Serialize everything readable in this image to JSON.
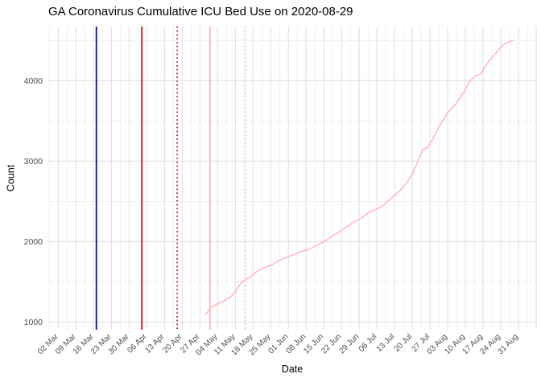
{
  "header": {
    "title": "GA Coronavirus Cumulative ICU Bed Use on 2020-08-29"
  },
  "chart_data": {
    "type": "line",
    "title": "GA Coronavirus Cumulative ICU Bed Use on 2020-08-29",
    "xlabel": "Date",
    "ylabel": "Count",
    "grid": true,
    "legend_position": "none",
    "background": "#ffffff",
    "grid_major_color": "#e3e3e3",
    "grid_minor_color": "#efefef",
    "tick_label_color": "#4d4d4d",
    "x_domain": [
      "2020-02-27",
      "2020-09-07"
    ],
    "ylim": [
      906,
      4672
    ],
    "y_ticks": [
      1000,
      2000,
      3000,
      4000
    ],
    "y_minor_ticks": [
      1500,
      2500,
      3500,
      4500
    ],
    "x_ticks": [
      {
        "date": "2020-03-02",
        "label": "02 Mar"
      },
      {
        "date": "2020-03-09",
        "label": "09 Mar"
      },
      {
        "date": "2020-03-16",
        "label": "16 Mar"
      },
      {
        "date": "2020-03-23",
        "label": "23 Mar"
      },
      {
        "date": "2020-03-30",
        "label": "30 Mar"
      },
      {
        "date": "2020-04-06",
        "label": "06 Apr"
      },
      {
        "date": "2020-04-13",
        "label": "13 Apr"
      },
      {
        "date": "2020-04-20",
        "label": "20 Apr"
      },
      {
        "date": "2020-04-27",
        "label": "27 Apr"
      },
      {
        "date": "2020-05-04",
        "label": "04 May"
      },
      {
        "date": "2020-05-11",
        "label": "11 May"
      },
      {
        "date": "2020-05-18",
        "label": "18 May"
      },
      {
        "date": "2020-05-25",
        "label": "25 May"
      },
      {
        "date": "2020-06-01",
        "label": "01 Jun"
      },
      {
        "date": "2020-06-08",
        "label": "08 Jun"
      },
      {
        "date": "2020-06-15",
        "label": "15 Jun"
      },
      {
        "date": "2020-06-22",
        "label": "22 Jun"
      },
      {
        "date": "2020-06-29",
        "label": "29 Jun"
      },
      {
        "date": "2020-07-06",
        "label": "06 Jul"
      },
      {
        "date": "2020-07-13",
        "label": "13 Jul"
      },
      {
        "date": "2020-07-20",
        "label": "20 Jul"
      },
      {
        "date": "2020-07-27",
        "label": "27 Jul"
      },
      {
        "date": "2020-08-03",
        "label": "03 Aug"
      },
      {
        "date": "2020-08-10",
        "label": "10 Aug"
      },
      {
        "date": "2020-08-17",
        "label": "17 Aug"
      },
      {
        "date": "2020-08-24",
        "label": "24 Aug"
      },
      {
        "date": "2020-08-31",
        "label": "31 Aug"
      }
    ],
    "vlines": [
      {
        "name": "darkblue-solid-event-line",
        "date": "2020-03-17",
        "color": "#00008b",
        "style": "solid"
      },
      {
        "name": "red-solid-event-line",
        "date": "2020-04-04",
        "color": "#e00000",
        "style": "solid"
      },
      {
        "name": "red-dotted-event-line",
        "date": "2020-04-18",
        "color": "#d00000",
        "style": "dotted"
      },
      {
        "name": "pink-solid-event-line",
        "date": "2020-05-01",
        "color": "#ffb6c1",
        "style": "solid"
      },
      {
        "name": "pink-dotted-event-line",
        "date": "2020-05-15",
        "color": "#ffb6c1",
        "style": "dotted"
      }
    ],
    "series": [
      {
        "name": "cumulative-icu-beds",
        "color": "#ffb6c1",
        "points": [
          [
            "2020-04-29",
            1085
          ],
          [
            "2020-05-01",
            1170
          ],
          [
            "2020-05-02",
            1195
          ],
          [
            "2020-05-04",
            1230
          ],
          [
            "2020-05-06",
            1255
          ],
          [
            "2020-05-08",
            1290
          ],
          [
            "2020-05-10",
            1340
          ],
          [
            "2020-05-12",
            1430
          ],
          [
            "2020-05-14",
            1510
          ],
          [
            "2020-05-16",
            1545
          ],
          [
            "2020-05-18",
            1590
          ],
          [
            "2020-05-20",
            1640
          ],
          [
            "2020-05-22",
            1670
          ],
          [
            "2020-05-24",
            1695
          ],
          [
            "2020-05-26",
            1720
          ],
          [
            "2020-05-28",
            1760
          ],
          [
            "2020-05-31",
            1800
          ],
          [
            "2020-06-03",
            1840
          ],
          [
            "2020-06-06",
            1875
          ],
          [
            "2020-06-09",
            1905
          ],
          [
            "2020-06-12",
            1950
          ],
          [
            "2020-06-15",
            2000
          ],
          [
            "2020-06-18",
            2060
          ],
          [
            "2020-06-21",
            2120
          ],
          [
            "2020-06-24",
            2185
          ],
          [
            "2020-06-27",
            2245
          ],
          [
            "2020-06-30",
            2295
          ],
          [
            "2020-07-03",
            2365
          ],
          [
            "2020-07-06",
            2405
          ],
          [
            "2020-07-09",
            2460
          ],
          [
            "2020-07-12",
            2550
          ],
          [
            "2020-07-15",
            2630
          ],
          [
            "2020-07-18",
            2740
          ],
          [
            "2020-07-20",
            2840
          ],
          [
            "2020-07-22",
            2980
          ],
          [
            "2020-07-24",
            3140
          ],
          [
            "2020-07-26",
            3170
          ],
          [
            "2020-07-28",
            3270
          ],
          [
            "2020-07-31",
            3450
          ],
          [
            "2020-08-03",
            3600
          ],
          [
            "2020-08-06",
            3700
          ],
          [
            "2020-08-09",
            3840
          ],
          [
            "2020-08-12",
            4000
          ],
          [
            "2020-08-14",
            4060
          ],
          [
            "2020-08-16",
            4080
          ],
          [
            "2020-08-19",
            4230
          ],
          [
            "2020-08-22",
            4340
          ],
          [
            "2020-08-25",
            4450
          ],
          [
            "2020-08-27",
            4475
          ],
          [
            "2020-08-29",
            4505
          ]
        ]
      }
    ]
  }
}
